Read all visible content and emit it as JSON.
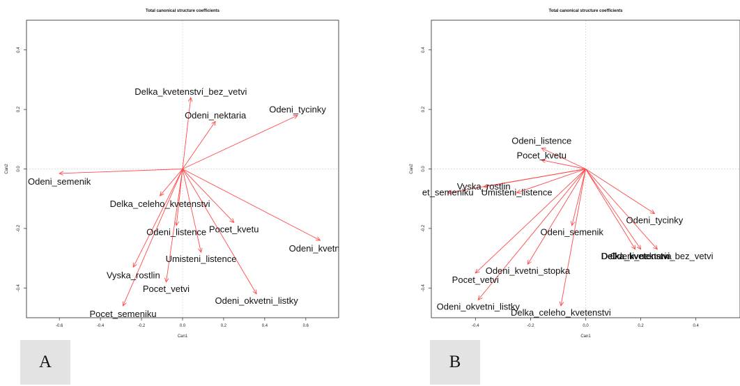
{
  "panels": [
    {
      "letter": "A"
    },
    {
      "letter": "B"
    }
  ],
  "chart_data": [
    {
      "type": "scatter",
      "title": "Total canonical structure coefficients",
      "xlabel": "Can1",
      "ylabel": "Can2",
      "xlim": [
        -0.76,
        0.76
      ],
      "ylim": [
        -0.5,
        0.5
      ],
      "xticks": [
        -0.6,
        -0.4,
        -0.2,
        0.0,
        0.2,
        0.4,
        0.6
      ],
      "yticks": [
        -0.4,
        -0.2,
        0.0,
        0.2,
        0.4
      ],
      "arrow_origin": [
        0,
        0
      ],
      "arrow_color": "#ff4a4a",
      "points": [
        {
          "label": "Delka_kvetenství_bez_vetvi",
          "x": 0.04,
          "y": 0.24
        },
        {
          "label": "Odeni_nektaria",
          "x": 0.16,
          "y": 0.16
        },
        {
          "label": "Odeni_tycinky",
          "x": 0.56,
          "y": 0.18
        },
        {
          "label": "Odeni_semenik",
          "x": -0.6,
          "y": -0.015
        },
        {
          "label": "Delka_celeho_kvetenstvi",
          "x": -0.11,
          "y": -0.09
        },
        {
          "label": "Odeni_listence",
          "x": -0.03,
          "y": -0.19
        },
        {
          "label": "Pocet_kvetu",
          "x": 0.25,
          "y": -0.18
        },
        {
          "label": "Odeni_kvetni_s",
          "x": 0.67,
          "y": -0.24
        },
        {
          "label": "Umisteni_listence",
          "x": 0.09,
          "y": -0.28
        },
        {
          "label": "Vyska_rostlin",
          "x": -0.24,
          "y": -0.33
        },
        {
          "label": "Pocet_vetvi",
          "x": -0.08,
          "y": -0.38
        },
        {
          "label": "Odeni_okvetni_listky",
          "x": 0.36,
          "y": -0.42
        },
        {
          "label": "Pocet_semeniku",
          "x": -0.29,
          "y": -0.46
        }
      ]
    },
    {
      "type": "scatter",
      "title": "Total canonical structure coefficients",
      "xlabel": "Can1",
      "ylabel": "Can2",
      "xlim": [
        -0.56,
        0.56
      ],
      "ylim": [
        -0.5,
        0.5
      ],
      "xticks": [
        -0.4,
        -0.2,
        0.0,
        0.2,
        0.4
      ],
      "yticks": [
        -0.4,
        -0.2,
        0.0,
        0.2,
        0.4
      ],
      "arrow_origin": [
        0,
        0
      ],
      "arrow_color": "#ff4a4a",
      "points": [
        {
          "label": "Odeni_listence",
          "x": -0.16,
          "y": 0.07
        },
        {
          "label": "Pocet_kvetu",
          "x": -0.16,
          "y": 0.03
        },
        {
          "label": "Vyska_rostlin",
          "x": -0.37,
          "y": -0.06
        },
        {
          "label": "et_semeniku",
          "x": -0.5,
          "y": -0.08
        },
        {
          "label": "Umisteni_listence",
          "x": -0.25,
          "y": -0.08
        },
        {
          "label": "Odeni_tycinky",
          "x": 0.25,
          "y": -0.15
        },
        {
          "label": "Odeni_semenik",
          "x": -0.05,
          "y": -0.19
        },
        {
          "label": "Delka_kvetenstvi",
          "x": 0.18,
          "y": -0.27
        },
        {
          "label": "Odeni_nektaria",
          "x": 0.2,
          "y": -0.27
        },
        {
          "label": "Delka_kvetenstvi_bez_vetvi",
          "x": 0.26,
          "y": -0.27
        },
        {
          "label": "Odeni_kvetni_stopka",
          "x": -0.21,
          "y": -0.32
        },
        {
          "label": "Pocet_vetvi",
          "x": -0.4,
          "y": -0.35
        },
        {
          "label": "Odeni_okvetni_listky",
          "x": -0.39,
          "y": -0.44
        },
        {
          "label": "Delka_celeho_kvetenstvi",
          "x": -0.09,
          "y": -0.46
        }
      ]
    }
  ]
}
